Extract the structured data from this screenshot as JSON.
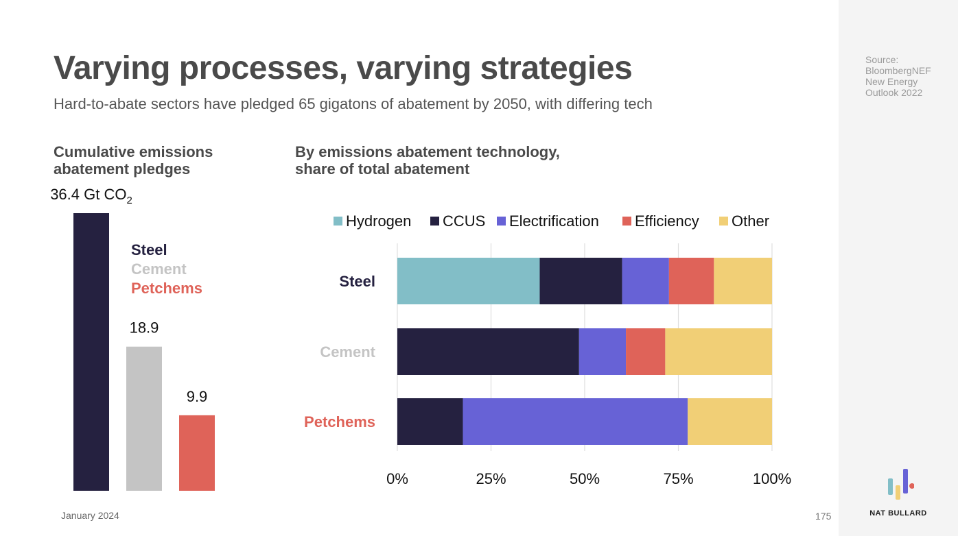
{
  "title": "Varying processes, varying strategies",
  "subtitle": "Hard-to-abate sectors have pledged 65 gigatons of abatement by 2050, with differing tech",
  "left_panel": {
    "title_line1": "Cumulative emissions",
    "title_line2": "abatement pledges"
  },
  "right_panel": {
    "title_line1": "By emissions abatement technology,",
    "title_line2": "share of total abatement"
  },
  "source": {
    "line1": "Source:",
    "line2": "BloombergNEF",
    "line3": "New Energy",
    "line4": "Outlook 2022"
  },
  "footer": {
    "date": "January 2024",
    "page": "175",
    "brand": "NAT BULLARD"
  },
  "colors": {
    "steel": "#252140",
    "cement": "#c4c4c4",
    "petchems": "#df6359",
    "hydrogen": "#82bec7",
    "ccus": "#252140",
    "electrification": "#6762d6",
    "efficiency": "#df6359",
    "other": "#f1cf76"
  },
  "chart_data": [
    {
      "type": "bar",
      "categories": [
        "Steel",
        "Cement",
        "Petchems"
      ],
      "values": [
        36.4,
        18.9,
        9.9
      ],
      "data_labels": [
        "36.4 Gt CO",
        "18.9",
        "9.9"
      ],
      "data_label_unit_subscript": "2",
      "title": "Cumulative emissions abatement pledges",
      "ylim": [
        0,
        36.4
      ],
      "legend": {
        "placement": "right",
        "entries": [
          "Steel",
          "Cement",
          "Petchems"
        ]
      }
    },
    {
      "type": "bar",
      "orientation": "horizontal",
      "stacked": true,
      "title": "By emissions abatement technology, share of total abatement",
      "categories": [
        "Steel",
        "Cement",
        "Petchems"
      ],
      "series": [
        {
          "name": "Hydrogen",
          "values": [
            38,
            0,
            0
          ]
        },
        {
          "name": "CCUS",
          "values": [
            22,
            48.5,
            17.5
          ]
        },
        {
          "name": "Electrification",
          "values": [
            12.5,
            12.5,
            60
          ]
        },
        {
          "name": "Efficiency",
          "values": [
            12,
            10.5,
            0
          ]
        },
        {
          "name": "Other",
          "values": [
            15.5,
            28.5,
            22.5
          ]
        }
      ],
      "xlim": [
        0,
        100
      ],
      "xticks": [
        "0%",
        "25%",
        "50%",
        "75%",
        "100%"
      ],
      "grid": true,
      "legend": {
        "placement": "top"
      }
    }
  ]
}
